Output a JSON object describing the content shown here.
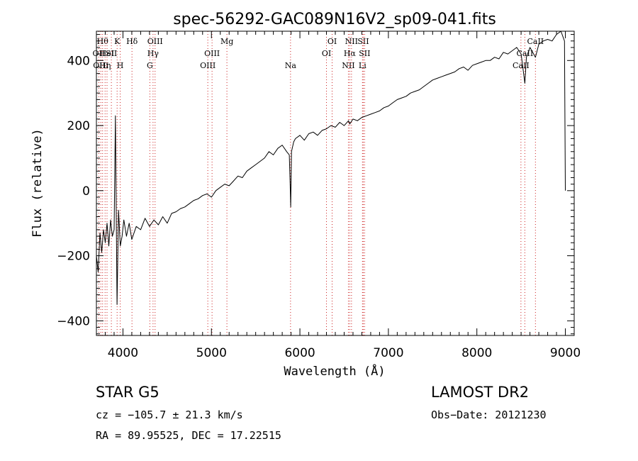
{
  "chart_data": {
    "type": "line",
    "title": "spec-56292-GAC089N16V2_sp09-041.fits",
    "xlabel": "Wavelength (Å)",
    "ylabel": "Flux (relative)",
    "xlim": [
      3700,
      9100
    ],
    "ylim": [
      -445,
      490
    ],
    "xticks": [
      4000,
      5000,
      6000,
      7000,
      8000,
      9000
    ],
    "xtick_labels": [
      "4000",
      "5000",
      "6000",
      "7000",
      "8000",
      "9000"
    ],
    "yticks": [
      -400,
      -200,
      0,
      200,
      400
    ],
    "ytick_labels": [
      "−400",
      "−200",
      "0",
      "200",
      "400"
    ],
    "grid": false,
    "series": [
      {
        "x": [
          3700,
          3720,
          3740,
          3760,
          3780,
          3800,
          3820,
          3840,
          3860,
          3880,
          3900,
          3915,
          3933,
          3950,
          3970,
          3990,
          4010,
          4040,
          4070,
          4100,
          4150,
          4200,
          4250,
          4300,
          4350,
          4400,
          4450,
          4500,
          4550,
          4600,
          4650,
          4700,
          4750,
          4800,
          4850,
          4900,
          4950,
          5000,
          5050,
          5100,
          5150,
          5200,
          5250,
          5300,
          5350,
          5400,
          5450,
          5500,
          5550,
          5600,
          5650,
          5700,
          5750,
          5800,
          5850,
          5880,
          5890,
          5896,
          5905,
          5930,
          5950,
          6000,
          6050,
          6100,
          6150,
          6200,
          6250,
          6300,
          6350,
          6400,
          6450,
          6500,
          6550,
          6563,
          6600,
          6650,
          6700,
          6750,
          6800,
          6850,
          6900,
          6950,
          7000,
          7050,
          7100,
          7150,
          7200,
          7250,
          7300,
          7350,
          7400,
          7450,
          7500,
          7550,
          7600,
          7650,
          7700,
          7750,
          7800,
          7850,
          7900,
          7950,
          8000,
          8050,
          8100,
          8150,
          8200,
          8250,
          8300,
          8350,
          8400,
          8450,
          8500,
          8542,
          8560,
          8600,
          8662,
          8700,
          8750,
          8800,
          8850,
          8900,
          8950,
          8990,
          9000
        ],
        "y": [
          -200,
          -250,
          -130,
          -190,
          -120,
          -160,
          -100,
          -170,
          -90,
          -140,
          -120,
          230,
          -350,
          -60,
          -170,
          -140,
          -90,
          -140,
          -100,
          -150,
          -110,
          -120,
          -85,
          -110,
          -90,
          -105,
          -80,
          -100,
          -70,
          -65,
          -55,
          -50,
          -40,
          -30,
          -25,
          -15,
          -10,
          -20,
          0,
          10,
          20,
          15,
          30,
          45,
          40,
          60,
          70,
          80,
          90,
          100,
          120,
          110,
          130,
          140,
          120,
          110,
          20,
          -50,
          120,
          150,
          160,
          170,
          155,
          175,
          180,
          170,
          185,
          190,
          200,
          195,
          210,
          200,
          215,
          205,
          220,
          215,
          225,
          230,
          235,
          240,
          245,
          255,
          260,
          270,
          280,
          285,
          290,
          300,
          305,
          310,
          320,
          330,
          340,
          345,
          350,
          355,
          360,
          365,
          375,
          380,
          370,
          385,
          390,
          395,
          400,
          400,
          410,
          405,
          425,
          420,
          430,
          440,
          420,
          330,
          410,
          440,
          410,
          450,
          460,
          465,
          460,
          480,
          490,
          460,
          0
        ]
      }
    ],
    "line_markers": [
      {
        "wavelength": 3727,
        "label": "OII",
        "row": 1
      },
      {
        "wavelength": 3750,
        "label": "OIII",
        "row": 2
      },
      {
        "wavelength": 3770,
        "label": "Hθ",
        "row": 0
      },
      {
        "wavelength": 3798,
        "label": "Hη",
        "row": 2
      },
      {
        "wavelength": 3820,
        "label": "HeI",
        "row": 1
      },
      {
        "wavelength": 3869,
        "label": "SII",
        "row": 1
      },
      {
        "wavelength": 3934,
        "label": "K",
        "row": 0
      },
      {
        "wavelength": 3969,
        "label": "H",
        "row": 2
      },
      {
        "wavelength": 4102,
        "label": "Hδ",
        "row": 0
      },
      {
        "wavelength": 4304,
        "label": "G",
        "row": 2
      },
      {
        "wavelength": 4340,
        "label": "Hγ",
        "row": 1
      },
      {
        "wavelength": 4363,
        "label": "OIII",
        "row": 0
      },
      {
        "wavelength": 4959,
        "label": "OIII",
        "row": 2
      },
      {
        "wavelength": 5007,
        "label": "OIII",
        "row": 1
      },
      {
        "wavelength": 5175,
        "label": "Mg",
        "row": 0
      },
      {
        "wavelength": 5894,
        "label": "Na",
        "row": 2
      },
      {
        "wavelength": 6300,
        "label": "OI",
        "row": 1
      },
      {
        "wavelength": 6364,
        "label": "OI",
        "row": 0
      },
      {
        "wavelength": 6548,
        "label": "NII",
        "row": 2
      },
      {
        "wavelength": 6563,
        "label": "Hα",
        "row": 1
      },
      {
        "wavelength": 6583,
        "label": "NII",
        "row": 0
      },
      {
        "wavelength": 6707,
        "label": "Li",
        "row": 2
      },
      {
        "wavelength": 6716,
        "label": "SII",
        "row": 0
      },
      {
        "wavelength": 6731,
        "label": "SII",
        "row": 1
      },
      {
        "wavelength": 8498,
        "label": "CaII",
        "row": 2
      },
      {
        "wavelength": 8542,
        "label": "CaII",
        "row": 1
      },
      {
        "wavelength": 8662,
        "label": "CaII",
        "row": 0
      }
    ],
    "colors": {
      "spectrum": "#000000",
      "markers": "#cc2222",
      "axes": "#000000"
    }
  },
  "footer": {
    "object_type": "STAR   G5",
    "release": "LAMOST DR2",
    "cz": "cz = −105.7 ± 21.3 km/s",
    "obs_date": "Obs−Date: 20121230",
    "radec": "RA =  89.95525, DEC =  17.22515"
  }
}
